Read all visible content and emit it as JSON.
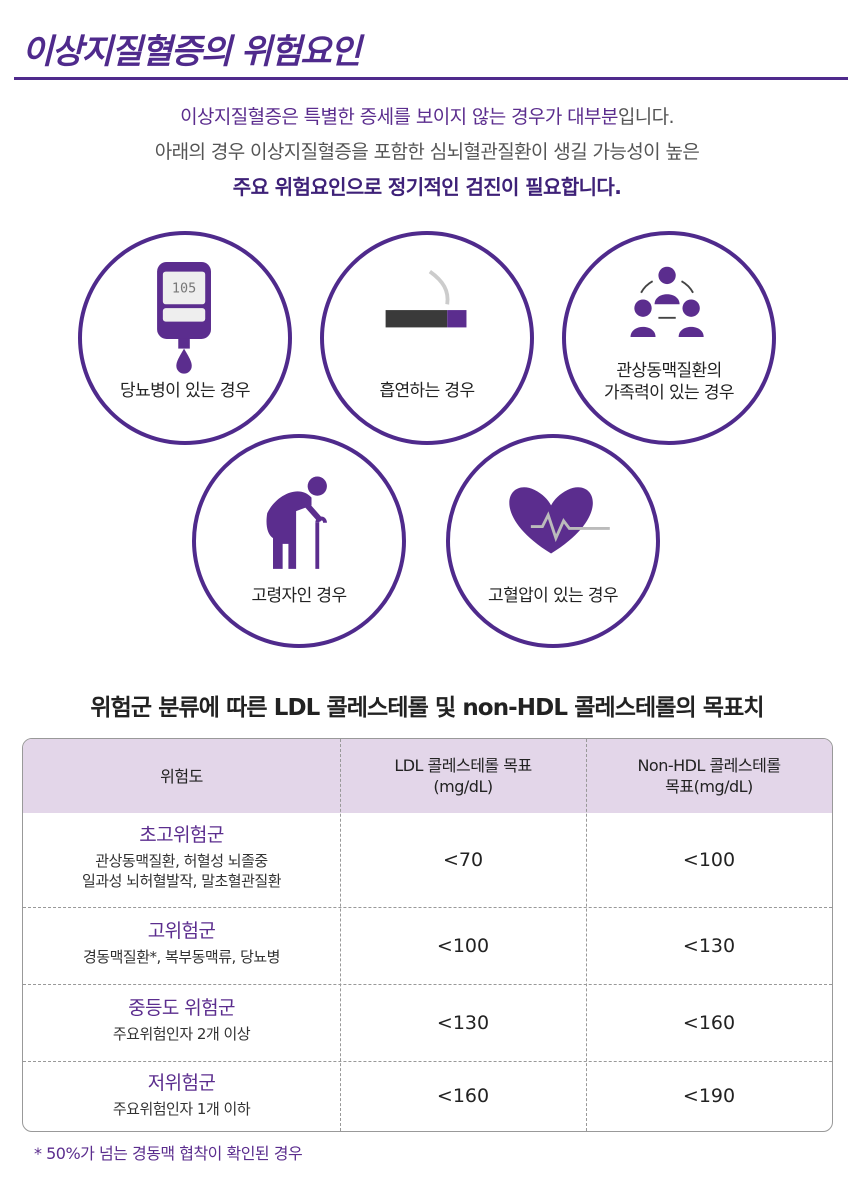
{
  "header": {
    "title": "이상지질혈증의 위험요인"
  },
  "intro": {
    "line1_highlight": "이상지질혈증은 특별한 증세를 보이지 않는 경우가 대부분",
    "line1_tail": "입니다.",
    "line2": "아래의 경우 이상지질혈증을 포함한 심뇌혈관질환이 생길 가능성이 높은",
    "line3": "주요 위험요인으로 정기적인 검진이 필요합니다."
  },
  "risk_factors": [
    {
      "label": "당뇨병이 있는 경우",
      "icon": "glucose-meter-icon",
      "meter_reading": "105"
    },
    {
      "label": "흡연하는 경우",
      "icon": "cigarette-icon"
    },
    {
      "label_line1": "관상동맥질환의",
      "label_line2": "가족력이 있는 경우",
      "icon": "family-icon"
    },
    {
      "label": "고령자인 경우",
      "icon": "elderly-icon"
    },
    {
      "label": "고혈압이 있는 경우",
      "icon": "heart-pulse-icon"
    }
  ],
  "table": {
    "title": "위험군 분류에 따른 LDL 콜레스테롤 및 non-HDL 콜레스테롤의 목표치",
    "headers": {
      "risk": "위험도",
      "ldl_line1": "LDL 콜레스테롤 목표",
      "ldl_line2": "(mg/dL)",
      "nonhdl_line1": "Non-HDL 콜레스테롤",
      "nonhdl_line2": "목표(mg/dL)"
    },
    "rows": [
      {
        "group": "초고위험군",
        "desc_line1": "관상동맥질환, 허혈성 뇌졸중",
        "desc_line2": "일과성 뇌허혈발작, 말초혈관질환",
        "ldl": "<70",
        "nonhdl": "<100"
      },
      {
        "group": "고위험군",
        "desc_line1": "경동맥질환*, 복부동맥류, 당뇨병",
        "ldl": "<100",
        "nonhdl": "<130"
      },
      {
        "group": "중등도 위험군",
        "desc_line1": "주요위험인자 2개 이상",
        "ldl": "<130",
        "nonhdl": "<160"
      },
      {
        "group": "저위험군",
        "desc_line1": "주요위험인자 1개 이하",
        "ldl": "<160",
        "nonhdl": "<190"
      }
    ]
  },
  "footnote": "* 50%가 넘는 경동맥 협착이 확인된 경우",
  "colors": {
    "accent": "#4f2a8c",
    "header_bg": "#e3d6e9",
    "text_purple": "#5b2d8e"
  }
}
